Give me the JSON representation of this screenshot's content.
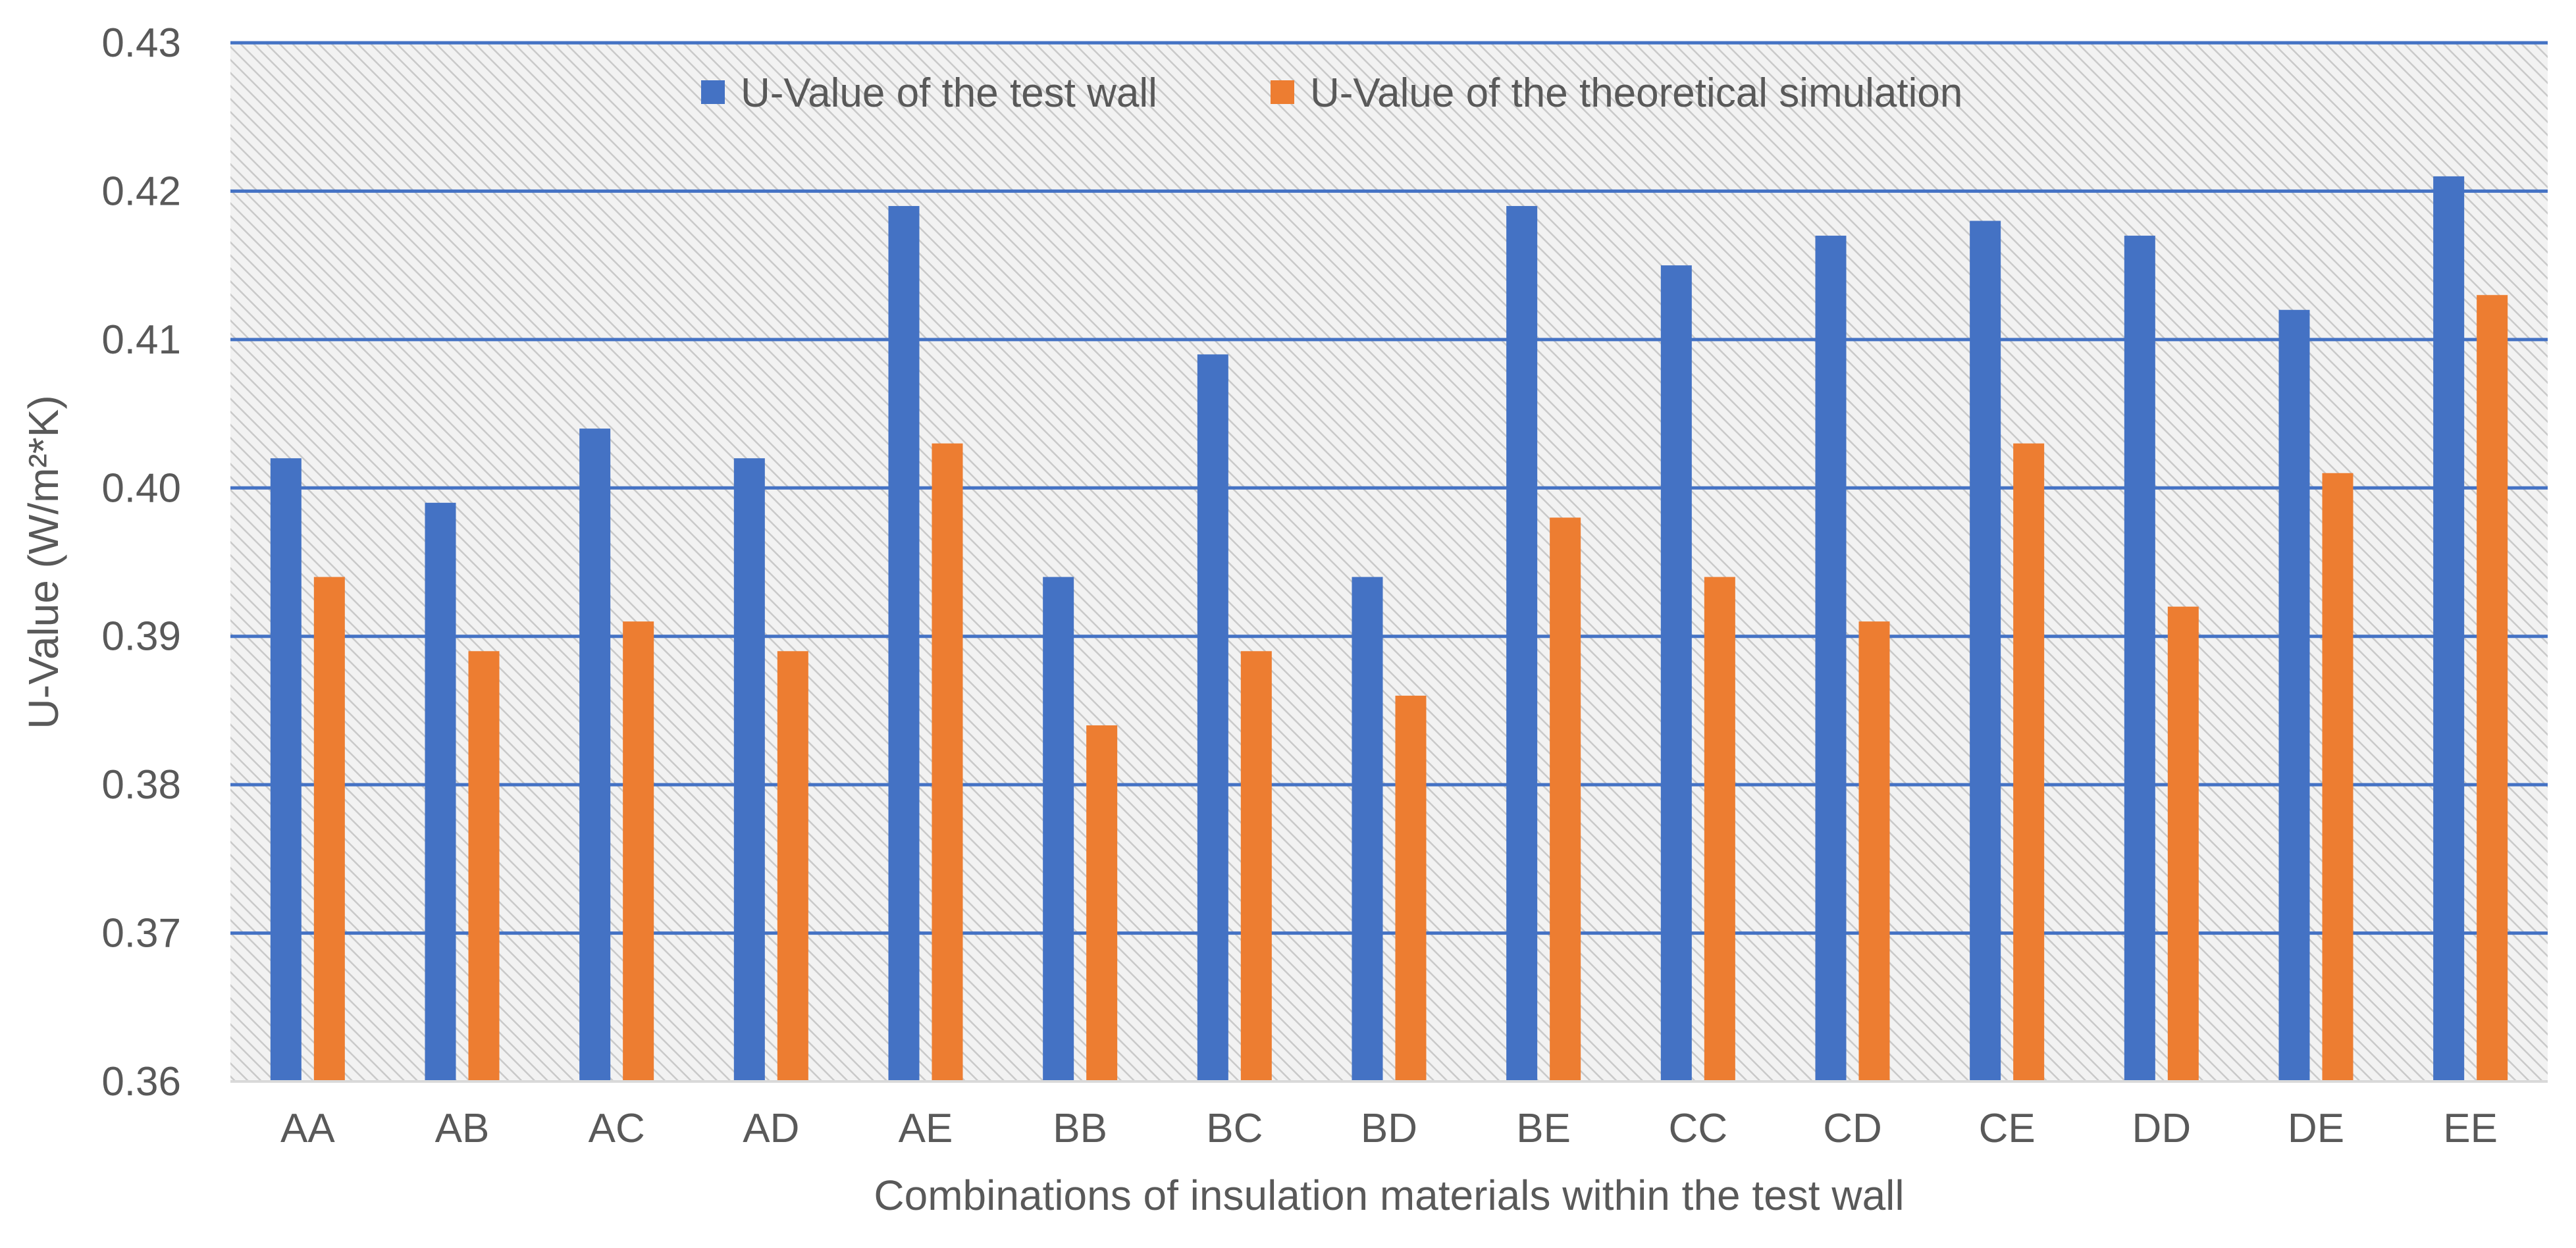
{
  "chart_data": {
    "type": "bar",
    "title": "",
    "xlabel": "Combinations of insulation materials within the test wall",
    "ylabel": "U-Value (W/m²*K)",
    "ylim": [
      0.36,
      0.43
    ],
    "y_ticks": [
      "0.36",
      "0.37",
      "0.38",
      "0.39",
      "0.40",
      "0.41",
      "0.42",
      "0.43"
    ],
    "grid": true,
    "legend_position": "top-center",
    "categories": [
      "AA",
      "AB",
      "AC",
      "AD",
      "AE",
      "BB",
      "BC",
      "BD",
      "BE",
      "CC",
      "CD",
      "CE",
      "DD",
      "DE",
      "EE"
    ],
    "series": [
      {
        "name": "U-Value of the test wall",
        "color": "#4472C4",
        "values": [
          0.402,
          0.399,
          0.404,
          0.402,
          0.419,
          0.394,
          0.409,
          0.394,
          0.419,
          0.415,
          0.417,
          0.418,
          0.417,
          0.412,
          0.421
        ]
      },
      {
        "name": "U-Value of the theoretical simulation",
        "color": "#ED7D31",
        "values": [
          0.394,
          0.389,
          0.391,
          0.389,
          0.403,
          0.384,
          0.389,
          0.386,
          0.398,
          0.394,
          0.391,
          0.403,
          0.392,
          0.401,
          0.413
        ]
      }
    ]
  }
}
